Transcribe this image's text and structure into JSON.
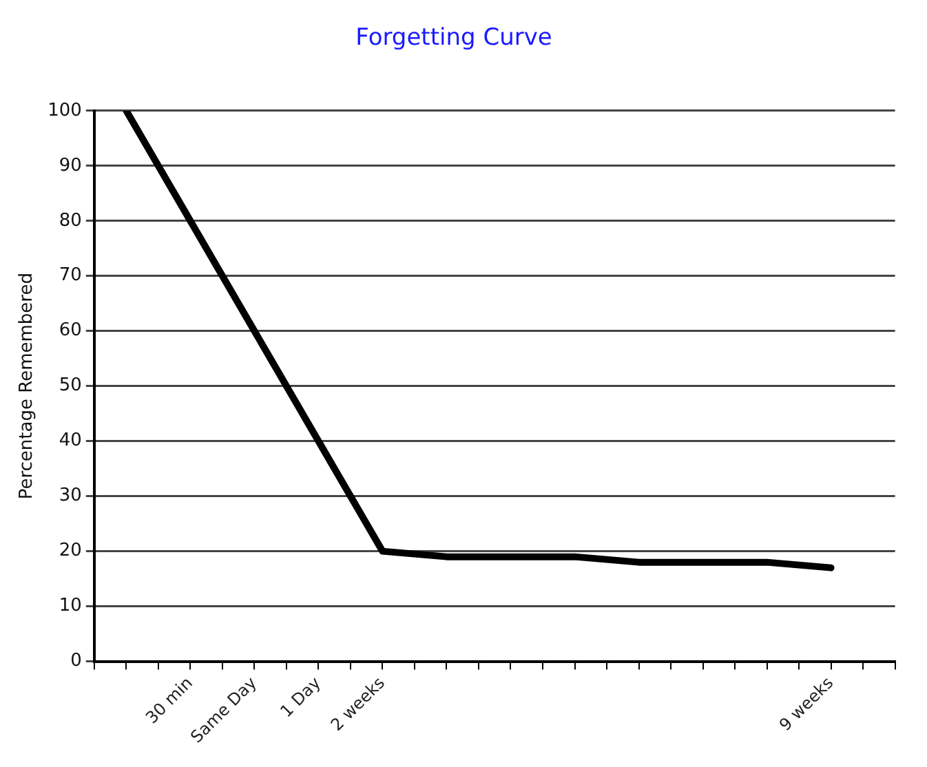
{
  "chart_data": {
    "type": "line",
    "title": "Forgetting Curve",
    "ylabel": "Percentage Remembered",
    "categories": [
      null,
      null,
      null,
      "30 min",
      null,
      "Same Day",
      null,
      "1 Day",
      null,
      "2 weeks",
      null,
      null,
      null,
      null,
      null,
      null,
      null,
      null,
      null,
      null,
      null,
      null,
      null,
      "9 weeks",
      null,
      null
    ],
    "series": [
      {
        "color": "#000000",
        "values": [
          null,
          100,
          null,
          null,
          null,
          null,
          null,
          null,
          null,
          20,
          null,
          19,
          null,
          null,
          null,
          19,
          null,
          18,
          null,
          null,
          null,
          18,
          null,
          17,
          null,
          null
        ]
      }
    ],
    "ylim": [
      0,
      100
    ],
    "yticks": [
      0,
      10,
      20,
      30,
      40,
      50,
      60,
      70,
      80,
      90,
      100
    ],
    "grid": "y",
    "legend": false,
    "marker": "none",
    "line_style": "solid"
  }
}
